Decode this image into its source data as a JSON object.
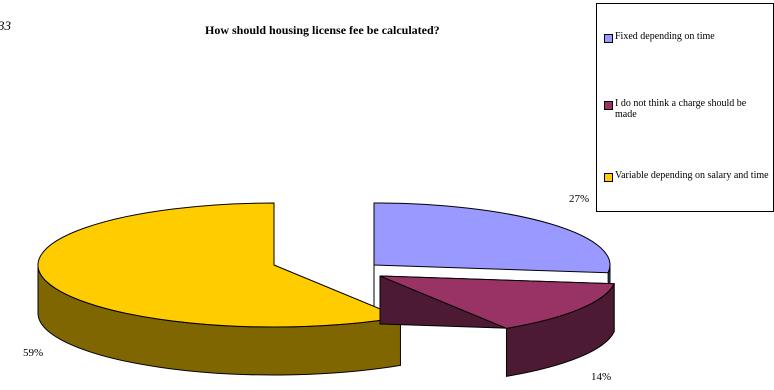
{
  "figure_number": "33",
  "chart_data": {
    "type": "pie",
    "title": "How should housing license fee be calculated?",
    "three_d": true,
    "legend_position": "top-right",
    "slices": [
      {
        "label": "Fixed depending on time",
        "value": 27,
        "value_label": "27%",
        "color": "#9999ff",
        "side_color": "#4d4d80"
      },
      {
        "label": "I do not think a charge should be made",
        "value": 14,
        "value_label": "14%",
        "color": "#993366",
        "side_color": "#4d1a33"
      },
      {
        "label": "Variable depending on salary and time",
        "value": 59,
        "value_label": "59%",
        "color": "#ffcc00",
        "side_color": "#806600"
      }
    ]
  }
}
